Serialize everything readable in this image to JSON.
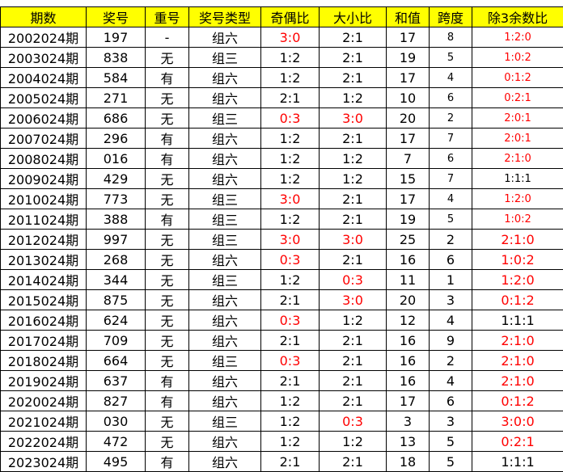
{
  "table": {
    "header": [
      "期数",
      "奖号",
      "重号",
      "奖号类型",
      "奇偶比",
      "大小比",
      "和值",
      "跨度",
      "除3余数比"
    ],
    "header_color": "#ffff00",
    "highlight_color": "#ff0000",
    "rows": [
      {
        "cells": [
          "2002024期",
          "197",
          "-",
          "组六",
          "3:0",
          "2:1",
          "17",
          "8",
          "1:2:0"
        ],
        "red_columns": [
          4,
          8
        ]
      },
      {
        "cells": [
          "2003024期",
          "838",
          "无",
          "组三",
          "1:2",
          "2:1",
          "19",
          "5",
          "1:0:2"
        ],
        "red_columns": [
          8
        ]
      },
      {
        "cells": [
          "2004024期",
          "584",
          "有",
          "组六",
          "1:2",
          "2:1",
          "17",
          "4",
          "0:1:2"
        ],
        "red_columns": [
          8
        ]
      },
      {
        "cells": [
          "2005024期",
          "271",
          "无",
          "组六",
          "2:1",
          "1:2",
          "10",
          "6",
          "0:2:1"
        ],
        "red_columns": [
          8
        ]
      },
      {
        "cells": [
          "2006024期",
          "686",
          "无",
          "组三",
          "0:3",
          "3:0",
          "20",
          "2",
          "2:0:1"
        ],
        "red_columns": [
          4,
          5,
          8
        ]
      },
      {
        "cells": [
          "2007024期",
          "296",
          "有",
          "组六",
          "1:2",
          "2:1",
          "17",
          "7",
          "2:0:1"
        ],
        "red_columns": [
          8
        ]
      },
      {
        "cells": [
          "2008024期",
          "016",
          "有",
          "组六",
          "1:2",
          "1:2",
          "7",
          "6",
          "2:1:0"
        ],
        "red_columns": [
          8
        ]
      },
      {
        "cells": [
          "2009024期",
          "429",
          "无",
          "组六",
          "1:2",
          "1:2",
          "15",
          "7",
          "1:1:1"
        ],
        "red_columns": []
      },
      {
        "cells": [
          "2010024期",
          "773",
          "无",
          "组三",
          "3:0",
          "2:1",
          "17",
          "4",
          "1:2:0"
        ],
        "red_columns": [
          4,
          8
        ]
      },
      {
        "cells": [
          "2011024期",
          "388",
          "有",
          "组三",
          "1:2",
          "2:1",
          "19",
          "5",
          "1:0:2"
        ],
        "red_columns": [
          8
        ]
      },
      {
        "cells": [
          "2012024期",
          "997",
          "无",
          "组三",
          "3:0",
          "3:0",
          "25",
          "2",
          "2:1:0"
        ],
        "red_columns": [
          4,
          5,
          8
        ]
      },
      {
        "cells": [
          "2013024期",
          "268",
          "无",
          "组六",
          "0:3",
          "2:1",
          "16",
          "6",
          "1:0:2"
        ],
        "red_columns": [
          4,
          8
        ]
      },
      {
        "cells": [
          "2014024期",
          "344",
          "无",
          "组三",
          "1:2",
          "0:3",
          "11",
          "1",
          "1:2:0"
        ],
        "red_columns": [
          5,
          8
        ]
      },
      {
        "cells": [
          "2015024期",
          "875",
          "无",
          "组六",
          "2:1",
          "3:0",
          "20",
          "3",
          "0:1:2"
        ],
        "red_columns": [
          5,
          8
        ]
      },
      {
        "cells": [
          "2016024期",
          "624",
          "无",
          "组六",
          "0:3",
          "1:2",
          "12",
          "4",
          "1:1:1"
        ],
        "red_columns": [
          4
        ]
      },
      {
        "cells": [
          "2017024期",
          "709",
          "无",
          "组六",
          "2:1",
          "2:1",
          "16",
          "9",
          "2:1:0"
        ],
        "red_columns": [
          8
        ]
      },
      {
        "cells": [
          "2018024期",
          "664",
          "无",
          "组三",
          "0:3",
          "2:1",
          "16",
          "2",
          "2:1:0"
        ],
        "red_columns": [
          4,
          8
        ]
      },
      {
        "cells": [
          "2019024期",
          "637",
          "有",
          "组六",
          "2:1",
          "2:1",
          "16",
          "4",
          "2:1:0"
        ],
        "red_columns": [
          8
        ]
      },
      {
        "cells": [
          "2020024期",
          "827",
          "有",
          "组六",
          "1:2",
          "2:1",
          "17",
          "6",
          "0:1:2"
        ],
        "red_columns": [
          8
        ]
      },
      {
        "cells": [
          "2021024期",
          "030",
          "无",
          "组三",
          "1:2",
          "0:3",
          "3",
          "3",
          "3:0:0"
        ],
        "red_columns": [
          5,
          8
        ]
      },
      {
        "cells": [
          "2022024期",
          "472",
          "无",
          "组六",
          "1:2",
          "1:2",
          "13",
          "5",
          "0:2:1"
        ],
        "red_columns": [
          8
        ]
      },
      {
        "cells": [
          "2023024期",
          "495",
          "有",
          "组六",
          "2:1",
          "2:1",
          "18",
          "5",
          "1:1:1"
        ],
        "red_columns": []
      }
    ]
  }
}
